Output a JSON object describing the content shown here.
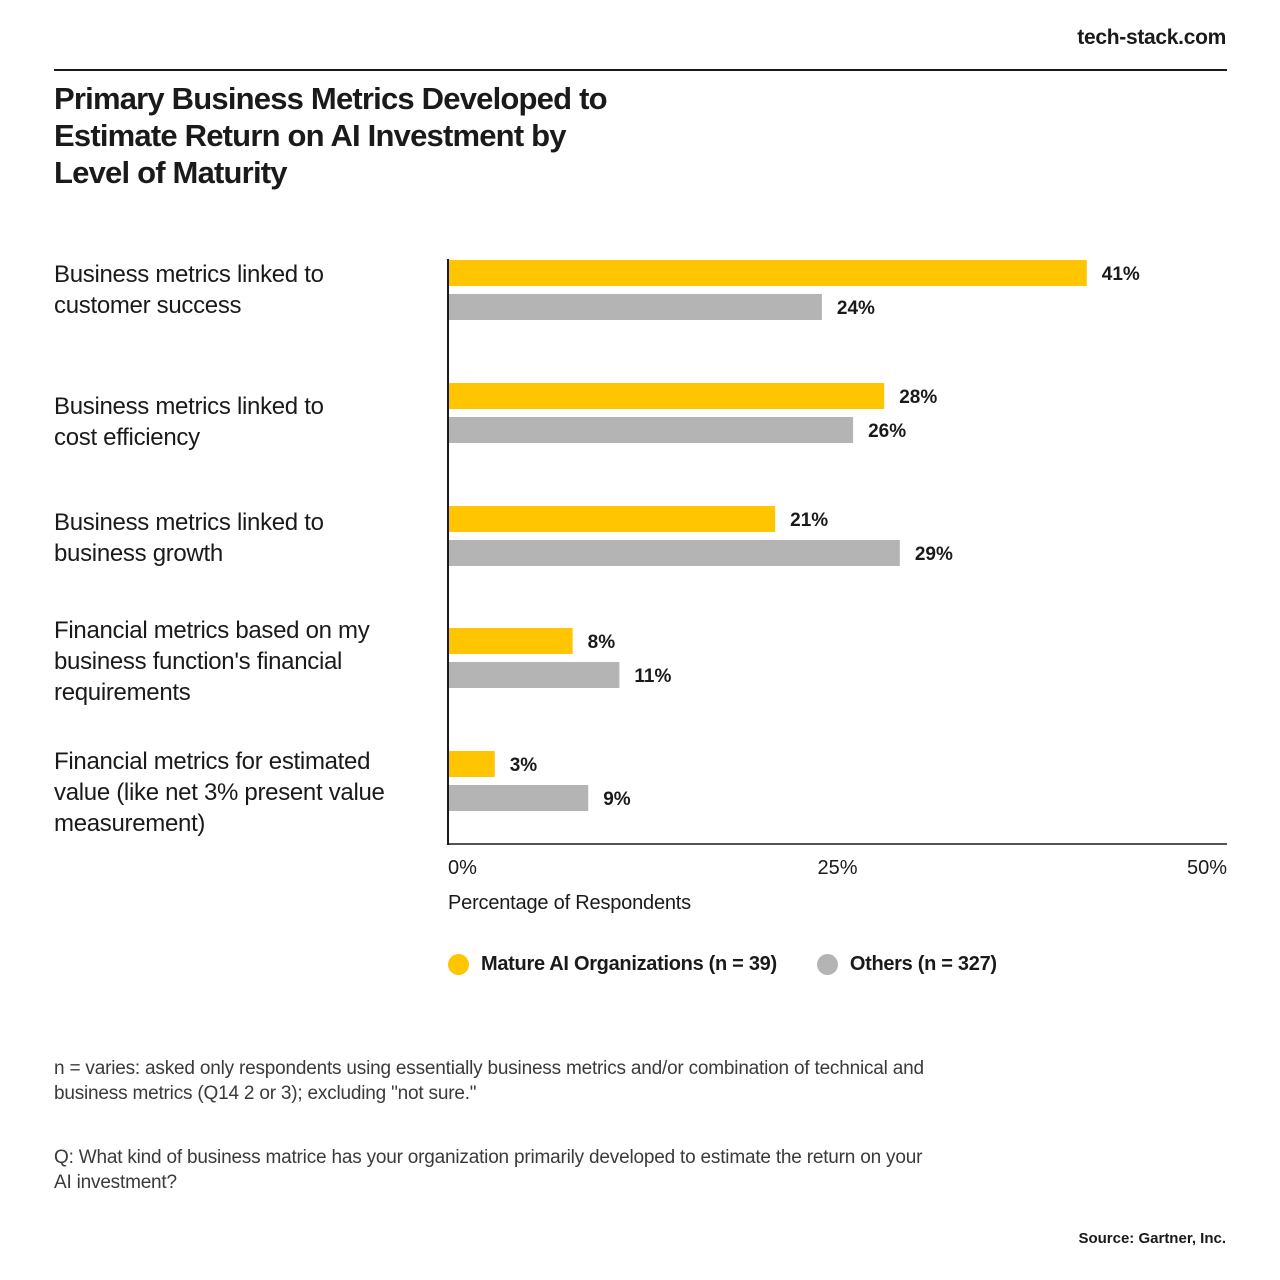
{
  "brand": "tech-stack.com",
  "chart_data": {
    "type": "bar",
    "orientation": "horizontal",
    "title": "Primary Business Metrics Developed to Estimate Return on AI Investment by Level of Maturity",
    "categories": [
      "Business metrics linked to customer success",
      "Business metrics linked to cost efficiency",
      "Business metrics linked to business growth",
      "Financial metrics based on my business function's financial requirements",
      "Financial metrics for estimated value (like net 3% present value measurement)"
    ],
    "series": [
      {
        "name": "Mature AI Organizations (n = 39)",
        "color": "#ffc600",
        "values": [
          41,
          28,
          21,
          8,
          3
        ]
      },
      {
        "name": "Others (n = 327)",
        "color": "#b4b4b4",
        "values": [
          24,
          26,
          29,
          11,
          9
        ]
      }
    ],
    "value_suffix": "%",
    "xlabel": "Percentage of Respondents",
    "xlim": [
      0,
      50
    ],
    "xticks": [
      0,
      25,
      50
    ],
    "xtick_labels": [
      "0%",
      "25%",
      "50%"
    ],
    "legend_position": "bottom",
    "grid": false
  },
  "category_lines": [
    [
      "Business metrics linked to",
      "customer success"
    ],
    [
      "Business metrics linked to",
      "cost efficiency"
    ],
    [
      "Business metrics linked to",
      "business growth"
    ],
    [
      "Financial metrics based on my",
      "business function's financial",
      "requirements"
    ],
    [
      "Financial metrics for estimated",
      "value (like net 3% present value",
      "measurement)"
    ]
  ],
  "notes": {
    "n_note": "n = varies: asked only respondents using essentially business metrics and/or combination of technical and business metrics (Q14 2 or 3); excluding \"not sure.\"",
    "question": "Q: What kind of business matrice has your organization primarily developed to estimate the return on your AI investment?"
  },
  "source": "Source: Gartner, Inc."
}
